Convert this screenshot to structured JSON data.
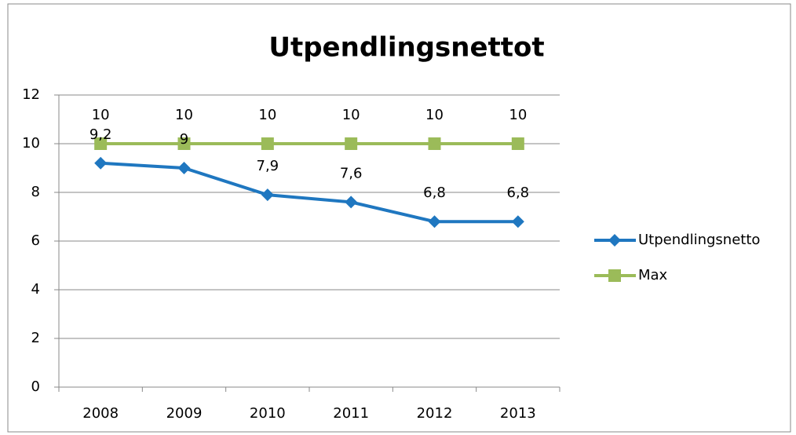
{
  "chart_data": {
    "type": "line",
    "title": "Utpendlingsnettot",
    "categories": [
      "2008",
      "2009",
      "2010",
      "2011",
      "2012",
      "2013"
    ],
    "series": [
      {
        "name": "Utpendlingsnetto",
        "color": "#1f77c0",
        "marker": "diamond",
        "values": [
          9.2,
          9,
          7.9,
          7.6,
          6.8,
          6.8
        ],
        "value_labels": [
          "9,2",
          "9",
          "7,9",
          "7,6",
          "6,8",
          "6,8"
        ]
      },
      {
        "name": "Max",
        "color": "#9bbb59",
        "marker": "square",
        "values": [
          10,
          10,
          10,
          10,
          10,
          10
        ]
      }
    ],
    "ylim": [
      0,
      12
    ],
    "yticks": [
      0,
      2,
      4,
      6,
      8,
      10,
      12
    ],
    "grid": true,
    "legend": "right"
  }
}
